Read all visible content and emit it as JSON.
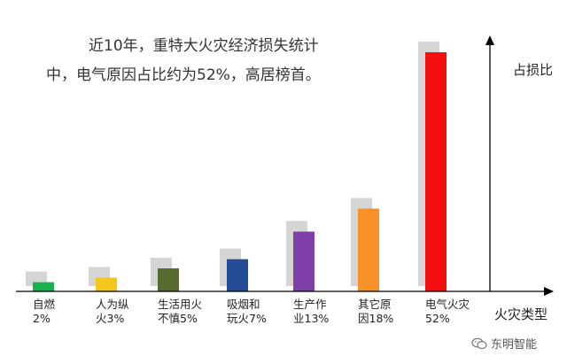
{
  "chart_data": {
    "type": "bar",
    "annotation": "近10年，重特大火灾经济损失统计中，电气原因占比约为52%，高居榜首。",
    "xlabel": "火灾类型",
    "ylabel": "占损比",
    "categories": [
      "自燃\n2%",
      "人为纵\n火3%",
      "生活用火\n不慎5%",
      "吸烟和\n玩火7%",
      "生产作\n业13%",
      "其它原\n因18%",
      "电气火灾\n52%"
    ],
    "values": [
      2,
      3,
      5,
      7,
      13,
      18,
      52
    ],
    "colors": [
      "#18b34a",
      "#f5c61b",
      "#556b2f",
      "#234b96",
      "#7e3fa8",
      "#f7922a",
      "#f51010"
    ],
    "shadow_color": "#b3b3b3",
    "ylim": [
      0,
      55
    ]
  },
  "watermark": {
    "icon": "wechat-icon",
    "text": "东明智能"
  }
}
